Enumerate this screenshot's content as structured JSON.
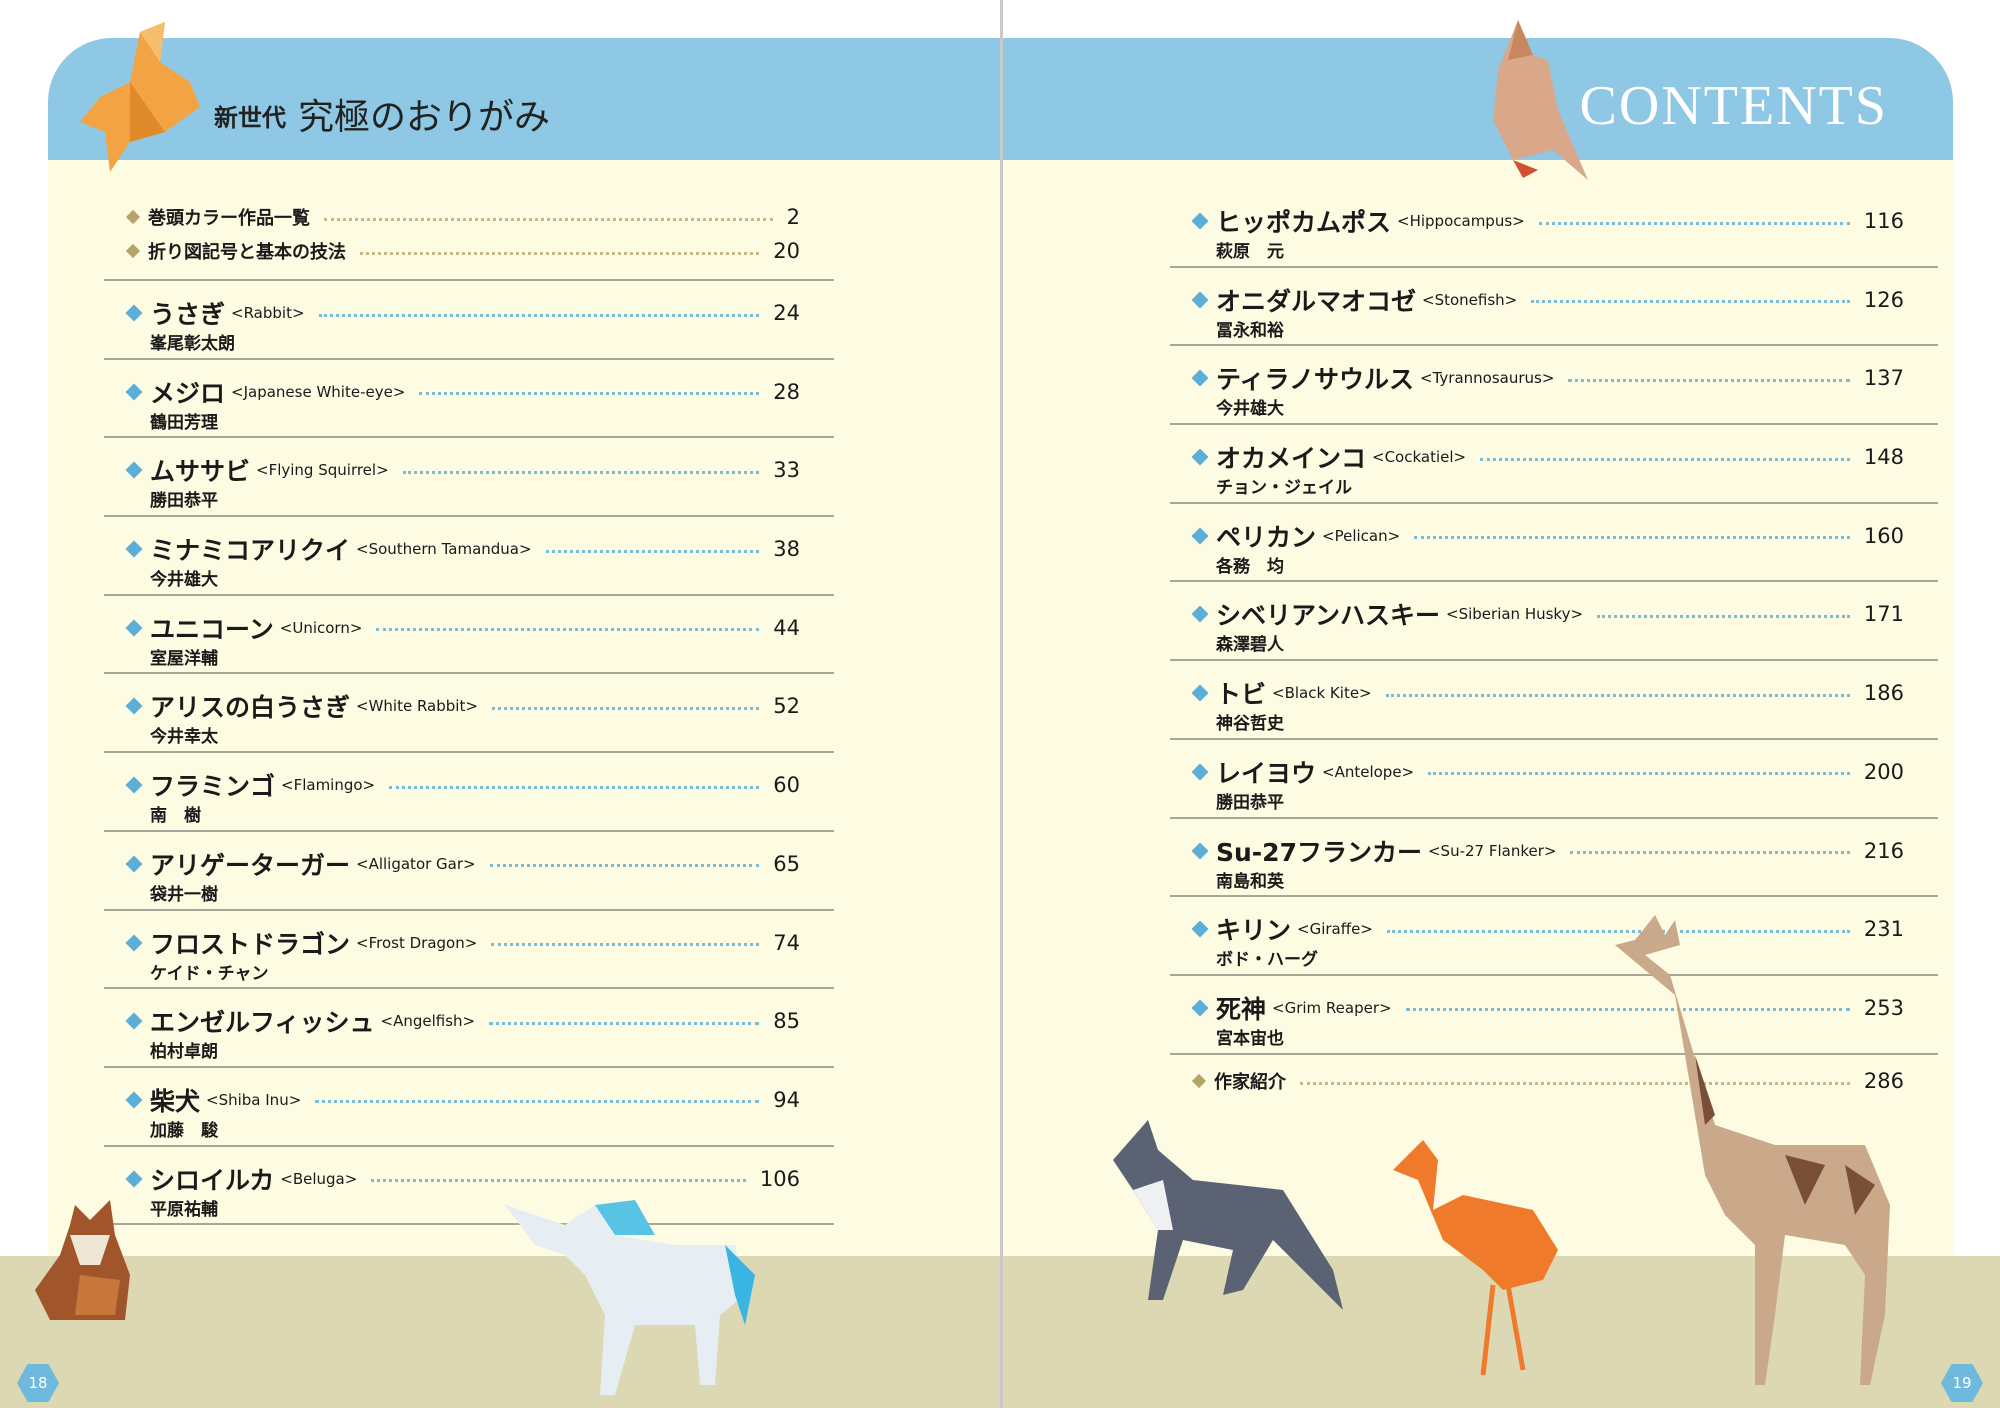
{
  "colors": {
    "header_band": "#8fc8e4",
    "background": "#fdfbe2",
    "ground": "#ddd8b4",
    "diamond_blue": "#5aaed8",
    "diamond_gold": "#b6a36a"
  },
  "left_page": {
    "title_small": "新世代",
    "title_big": "究極のおりがみ",
    "page_number": "18",
    "intro_items": [
      {
        "title": "巻頭カラー作品一覧",
        "page": "2"
      },
      {
        "title": "折り図記号と基本の技法",
        "page": "20"
      }
    ],
    "entries": [
      {
        "title": "うさぎ",
        "english": "<Rabbit>",
        "author": "峯尾彰太朗",
        "page": "24"
      },
      {
        "title": "メジロ",
        "english": "<Japanese White-eye>",
        "author": "鶴田芳理",
        "page": "28"
      },
      {
        "title": "ムササビ",
        "english": "<Flying Squirrel>",
        "author": "勝田恭平",
        "page": "33"
      },
      {
        "title": "ミナミコアリクイ",
        "english": "<Southern Tamandua>",
        "author": "今井雄大",
        "page": "38"
      },
      {
        "title": "ユニコーン",
        "english": "<Unicorn>",
        "author": "室屋洋輔",
        "page": "44"
      },
      {
        "title": "アリスの白うさぎ",
        "english": "<White Rabbit>",
        "author": "今井幸太",
        "page": "52"
      },
      {
        "title": "フラミンゴ",
        "english": "<Flamingo>",
        "author": "南　樹",
        "page": "60"
      },
      {
        "title": "アリゲーターガー",
        "english": "<Alligator Gar>",
        "author": "袋井一樹",
        "page": "65"
      },
      {
        "title": "フロストドラゴン",
        "english": "<Frost Dragon>",
        "author": "ケイド・チャン",
        "page": "74"
      },
      {
        "title": "エンゼルフィッシュ",
        "english": "<Angelfish>",
        "author": "柏村卓朗",
        "page": "85"
      },
      {
        "title": "柴犬",
        "english": "<Shiba Inu>",
        "author": "加藤　駿",
        "page": "94"
      },
      {
        "title": "シロイルカ",
        "english": "<Beluga>",
        "author": "平原祐輔",
        "page": "106"
      }
    ]
  },
  "right_page": {
    "heading": "CONTENTS",
    "page_number": "19",
    "entries": [
      {
        "title": "ヒッポカムポス",
        "english": "<Hippocampus>",
        "author": "萩原　元",
        "page": "116"
      },
      {
        "title": "オニダルマオコゼ",
        "english": "<Stonefish>",
        "author": "冨永和裕",
        "page": "126"
      },
      {
        "title": "ティラノサウルス",
        "english": "<Tyrannosaurus>",
        "author": "今井雄大",
        "page": "137"
      },
      {
        "title": "オカメインコ",
        "english": "<Cockatiel>",
        "author": "チョン・ジェイル",
        "page": "148"
      },
      {
        "title": "ペリカン",
        "english": "<Pelican>",
        "author": "各務　均",
        "page": "160"
      },
      {
        "title": "シベリアンハスキー",
        "english": "<Siberian Husky>",
        "author": "森澤碧人",
        "page": "171"
      },
      {
        "title": "トビ",
        "english": "<Black Kite>",
        "author": "神谷哲史",
        "page": "186"
      },
      {
        "title": "レイヨウ",
        "english": "<Antelope>",
        "author": "勝田恭平",
        "page": "200"
      },
      {
        "title": "Su-27フランカー",
        "english": "<Su-27 Flanker>",
        "author": "南島和英",
        "page": "216"
      },
      {
        "title": "キリン",
        "english": "<Giraffe>",
        "author": "ボド・ハーグ",
        "page": "231"
      },
      {
        "title": "死神",
        "english": "<Grim Reaper>",
        "author": "宮本宙也",
        "page": "253"
      }
    ],
    "outro_items": [
      {
        "title": "作家紹介",
        "page": "286"
      }
    ]
  }
}
